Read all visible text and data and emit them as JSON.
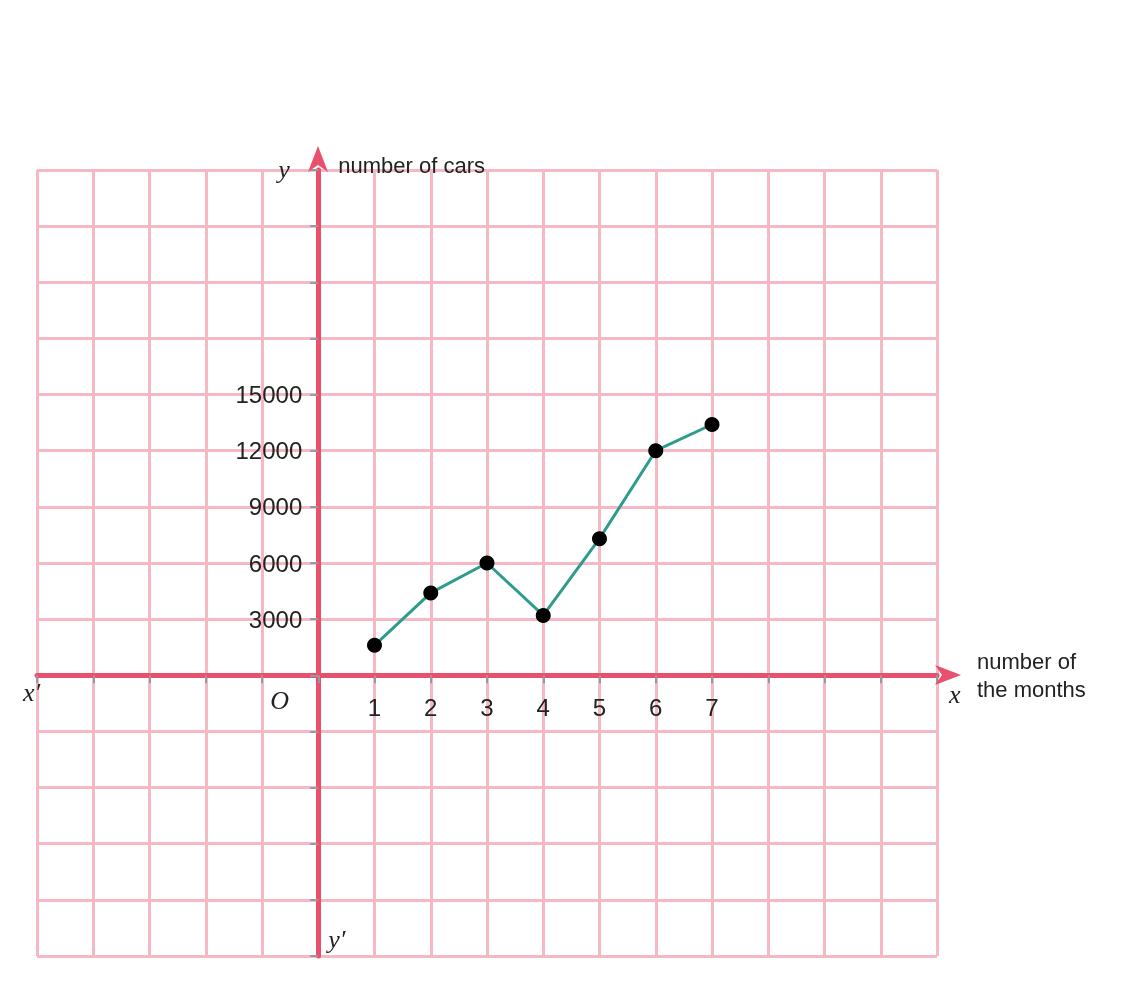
{
  "chart_data": {
    "type": "line",
    "xlabel": "number of\nthe months",
    "ylabel": "number of cars",
    "x": [
      1,
      2,
      3,
      4,
      5,
      6,
      7
    ],
    "series": [
      {
        "color": "#2e9c8c",
        "values": [
          1600,
          4400,
          6000,
          3200,
          7300,
          12000,
          13400
        ]
      }
    ],
    "xlim": [
      -5,
      11
    ],
    "ylim": [
      -15000,
      27000
    ],
    "xticks": [
      1,
      2,
      3,
      4,
      5,
      6,
      7
    ],
    "yticks": [
      3000,
      6000,
      9000,
      12000,
      15000
    ],
    "grid": true,
    "marker": "circle",
    "line_style": "solid",
    "annotations": [
      "y",
      "x′",
      "O",
      "x",
      "y′"
    ]
  }
}
